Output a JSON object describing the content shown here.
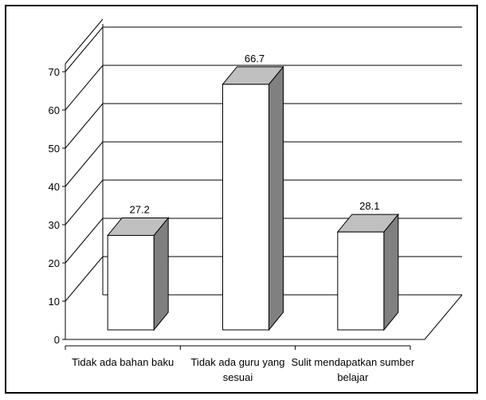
{
  "chart_data": {
    "type": "bar",
    "categories": [
      [
        "Tidak ada bahan baku"
      ],
      [
        "Tidak ada guru yang",
        "sesuai"
      ],
      [
        "Sulit mendapatkan sumber",
        "belajar"
      ]
    ],
    "values": [
      27.2,
      66.7,
      28.1
    ],
    "value_labels": [
      "27.2",
      "66.7",
      "28.1"
    ],
    "y_ticks": [
      "0",
      "10",
      "20",
      "30",
      "40",
      "50",
      "60",
      "70"
    ],
    "ylim": [
      0,
      70
    ],
    "title": "",
    "xlabel": "",
    "ylabel": "",
    "grid": true,
    "legend": "none",
    "style": "3d-column",
    "colors": {
      "bar_front": "#ffffff",
      "bar_top": "#c0c0c0",
      "bar_side": "#808080",
      "axis": "#000000",
      "grid": "#000000"
    }
  }
}
